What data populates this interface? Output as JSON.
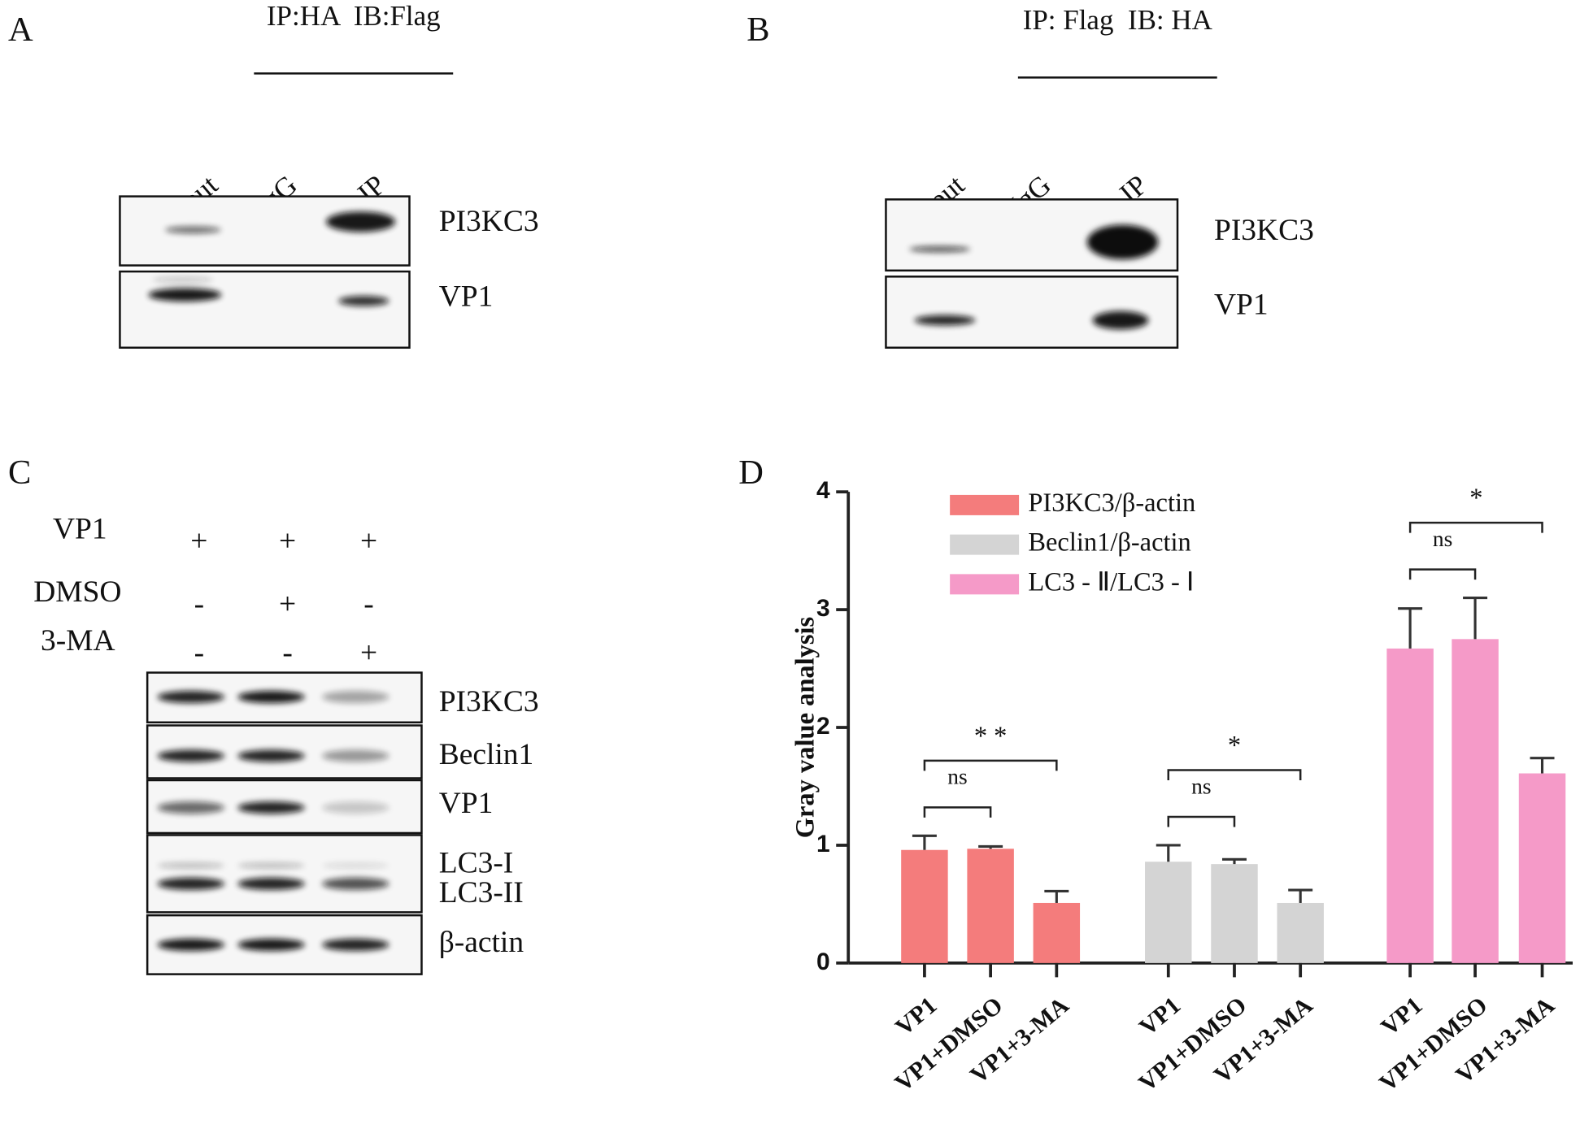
{
  "panels": {
    "A": {
      "label": "A",
      "header": "IP:HA  IB:Flag",
      "lanes": [
        "Input",
        "IgG",
        "IP"
      ],
      "rows": [
        "PI3KC3",
        "VP1"
      ]
    },
    "B": {
      "label": "B",
      "header": "IP: Flag  IB: HA",
      "lanes": [
        "Input",
        "IgG",
        "IP"
      ],
      "rows": [
        "PI3KC3",
        "VP1"
      ]
    },
    "C": {
      "label": "C",
      "treatments": [
        {
          "name": "VP1",
          "signs": [
            "+",
            "+",
            "+"
          ]
        },
        {
          "name": "DMSO",
          "signs": [
            "-",
            "+",
            "-"
          ]
        },
        {
          "name": "3-MA",
          "signs": [
            "-",
            "-",
            "+"
          ]
        }
      ],
      "rows": [
        "PI3KC3",
        "Beclin1",
        "VP1",
        "LC3-I",
        "LC3-II",
        "β-actin"
      ]
    },
    "D": {
      "label": "D"
    }
  },
  "chart_data": {
    "type": "bar",
    "y_label": "Gray value analysis",
    "categories": [
      "VP1",
      "VP1+DMSO",
      "VP1+3-MA"
    ],
    "series": [
      {
        "name": "PI3KC3/β-actin",
        "color": "#f47c7c",
        "values": [
          0.96,
          0.97,
          0.51
        ],
        "errors": [
          0.12,
          0.02,
          0.1
        ]
      },
      {
        "name": "Beclin1/β-actin",
        "color": "#d4d4d4",
        "values": [
          0.86,
          0.84,
          0.51
        ],
        "errors": [
          0.14,
          0.04,
          0.11
        ]
      },
      {
        "name": "LC3 - Ⅱ/LC3 - Ⅰ",
        "color": "#f59ac8",
        "values": [
          2.67,
          2.75,
          1.61
        ],
        "errors": [
          0.34,
          0.35,
          0.13
        ]
      }
    ],
    "ylim": [
      0,
      4
    ],
    "yticks": [
      0,
      1,
      2,
      3,
      4
    ],
    "legend": "upper left",
    "annotations": [
      "ns",
      "* *",
      "ns",
      "*",
      "ns",
      "*"
    ]
  }
}
